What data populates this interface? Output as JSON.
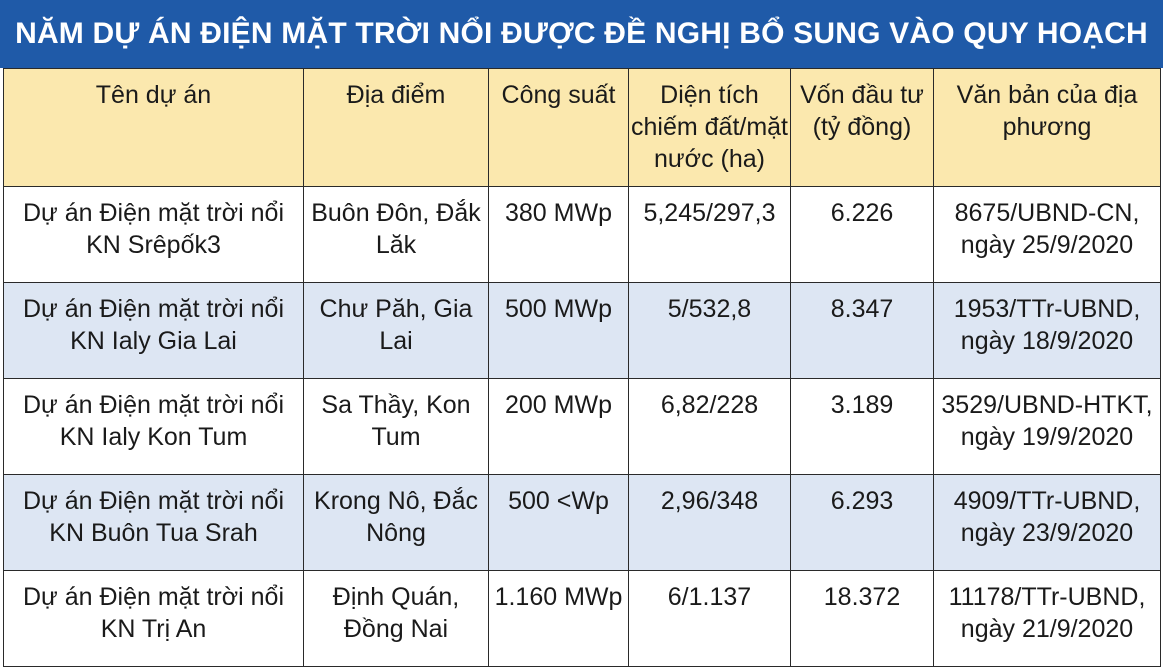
{
  "title": "NĂM DỰ ÁN ĐIỆN MẶT TRỜI NỔI ĐƯỢC ĐỀ NGHỊ BỔ SUNG VÀO QUY HOẠCH",
  "headers": [
    "Tên dự án",
    "Địa điểm",
    "Công suất",
    "Diện tích chiếm đất/mặt nước (ha)",
    "Vốn đầu tư (tỷ đồng)",
    "Văn bản của địa phương"
  ],
  "rows": [
    {
      "name": "Dự án Điện mặt trời nổi KN Srêpốk3",
      "location": "Buôn Đôn, Đắk Lăk",
      "capacity": "380 MWp",
      "area": "5,245/297,3",
      "investment": "6.226",
      "document": "8675/UBND-CN, ngày 25/9/2020"
    },
    {
      "name": "Dự án Điện mặt trời nổi KN Ialy Gia Lai",
      "location": "Chư Păh, Gia Lai",
      "capacity": "500 MWp",
      "area": "5/532,8",
      "investment": "8.347",
      "document": "1953/TTr-UBND, ngày 18/9/2020"
    },
    {
      "name": "Dự án Điện mặt trời nổi KN Ialy Kon Tum",
      "location": "Sa Thầy, Kon Tum",
      "capacity": "200 MWp",
      "area": "6,82/228",
      "investment": "3.189",
      "document": "3529/UBND-HTKT, ngày 19/9/2020"
    },
    {
      "name": "Dự án Điện mặt trời nổi KN Buôn Tua Srah",
      "location": "Krong Nô, Đắc Nông",
      "capacity": "500 <Wp",
      "area": "2,96/348",
      "investment": "6.293",
      "document": "4909/TTr-UBND, ngày 23/9/2020"
    },
    {
      "name": "Dự án Điện mặt trời nổi KN Trị An",
      "location": "Định Quán, Đồng Nai",
      "capacity": "1.160 MWp",
      "area": "6/1.137",
      "investment": "18.372",
      "document": "11178/TTr-UBND, ngày 21/9/2020"
    }
  ],
  "colors": {
    "title_bg": "#1f5aa8",
    "header_bg": "#fbe8ae",
    "stripe_bg": "#dde6f3"
  }
}
